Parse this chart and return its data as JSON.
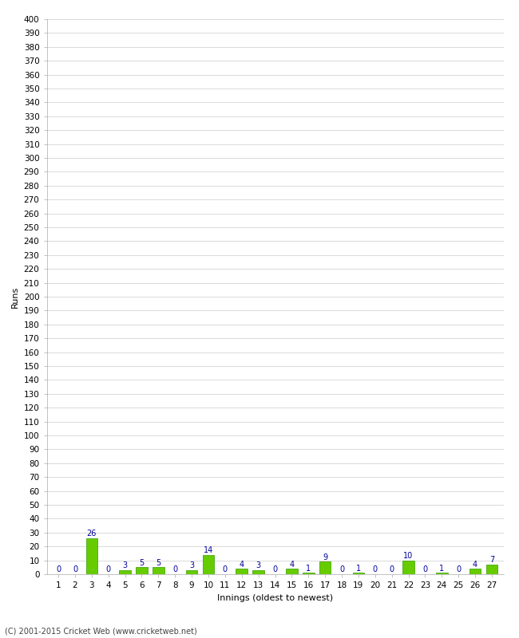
{
  "xlabel": "Innings (oldest to newest)",
  "ylabel": "Runs",
  "innings": [
    1,
    2,
    3,
    4,
    5,
    6,
    7,
    8,
    9,
    10,
    11,
    12,
    13,
    14,
    15,
    16,
    17,
    18,
    19,
    20,
    21,
    22,
    23,
    24,
    25,
    26,
    27
  ],
  "values": [
    0,
    0,
    26,
    0,
    3,
    5,
    5,
    0,
    3,
    14,
    0,
    4,
    3,
    0,
    4,
    1,
    9,
    0,
    1,
    0,
    0,
    10,
    0,
    1,
    0,
    4,
    7
  ],
  "bar_color": "#66cc00",
  "bar_edge_color": "#339900",
  "label_color": "#000099",
  "ylim": [
    0,
    400
  ],
  "ytick_step": 10,
  "background_color": "#ffffff",
  "grid_color": "#cccccc",
  "footer": "(C) 2001-2015 Cricket Web (www.cricketweb.net)",
  "label_fontsize": 7,
  "axis_label_fontsize": 8,
  "tick_fontsize": 7.5,
  "footer_fontsize": 7
}
